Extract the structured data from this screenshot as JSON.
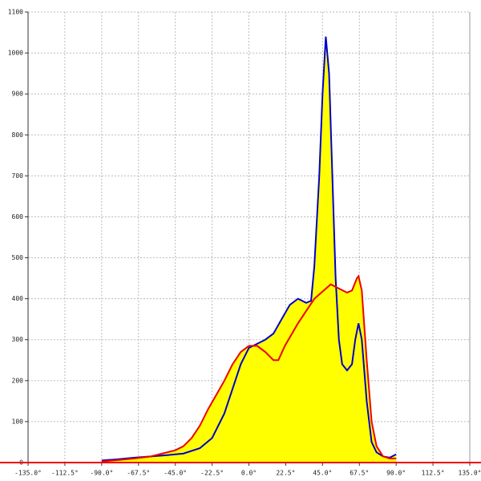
{
  "chart_data": {
    "type": "area-line",
    "xlim": [
      -135,
      135
    ],
    "ylim": [
      0,
      1100
    ],
    "xticks": [
      {
        "value": -135,
        "label": "-135.0°"
      },
      {
        "value": -112.5,
        "label": "-112.5°"
      },
      {
        "value": -90,
        "label": "-90.0°"
      },
      {
        "value": -67.5,
        "label": "-67.5°"
      },
      {
        "value": -45,
        "label": "-45.0°"
      },
      {
        "value": -22.5,
        "label": "-22.5°"
      },
      {
        "value": 0,
        "label": "0.0°"
      },
      {
        "value": 22.5,
        "label": "22.5°"
      },
      {
        "value": 45,
        "label": "45.0°"
      },
      {
        "value": 67.5,
        "label": "67.5°"
      },
      {
        "value": 90,
        "label": "90.0°"
      },
      {
        "value": 112.5,
        "label": "112.5°"
      },
      {
        "value": 135,
        "label": "135.0°"
      }
    ],
    "yticks": [
      0,
      100,
      200,
      300,
      400,
      500,
      600,
      700,
      800,
      900,
      1000,
      1100
    ],
    "grid": true,
    "fill_color": "#ffff00",
    "series": [
      {
        "color": "#0000cc",
        "x": [
          -90,
          -80,
          -70,
          -60,
          -50,
          -40,
          -30,
          -22.5,
          -15,
          -10,
          -5,
          0,
          5,
          10,
          15,
          20,
          25,
          30,
          35,
          38,
          40,
          43,
          45,
          47,
          49,
          51,
          53,
          55,
          57,
          60,
          63,
          65,
          67,
          69,
          72,
          75,
          78,
          82,
          86,
          90
        ],
        "values": [
          5,
          8,
          12,
          15,
          18,
          22,
          35,
          60,
          120,
          180,
          240,
          280,
          290,
          300,
          315,
          350,
          385,
          400,
          390,
          395,
          480,
          700,
          900,
          1040,
          950,
          700,
          450,
          300,
          240,
          225,
          240,
          300,
          340,
          300,
          150,
          50,
          25,
          15,
          12,
          20
        ]
      },
      {
        "color": "#ee0000",
        "x": [
          -90,
          -80,
          -70,
          -60,
          -50,
          -45,
          -40,
          -35,
          -30,
          -25,
          -20,
          -15,
          -10,
          -5,
          0,
          5,
          10,
          15,
          18,
          22,
          30,
          40,
          50,
          55,
          60,
          63,
          66,
          67,
          69,
          72,
          75,
          78,
          82,
          86,
          90
        ],
        "values": [
          3,
          6,
          10,
          15,
          25,
          30,
          40,
          60,
          90,
          130,
          165,
          200,
          240,
          270,
          285,
          285,
          270,
          250,
          250,
          285,
          340,
          400,
          435,
          425,
          415,
          420,
          450,
          455,
          420,
          250,
          100,
          40,
          15,
          10,
          10
        ]
      }
    ]
  }
}
